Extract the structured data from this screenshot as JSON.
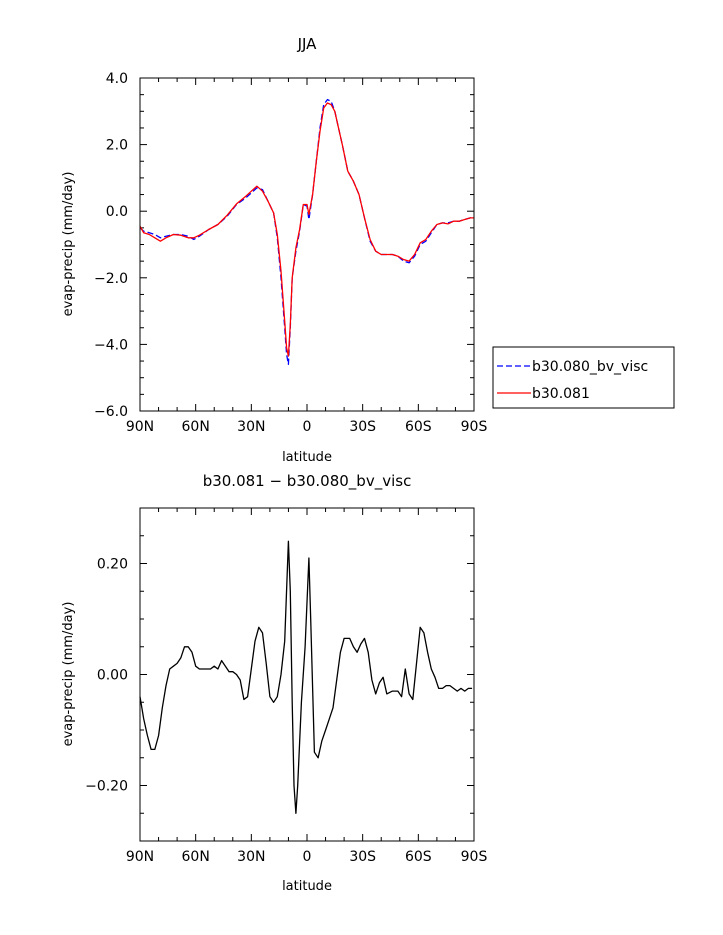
{
  "chart_data": [
    {
      "type": "line",
      "title": "JJA",
      "xlabel": "latitude",
      "ylabel": "evap-precip (mm/day)",
      "xlim": [
        -90,
        90
      ],
      "ylim": [
        -6,
        4
      ],
      "x_tick_values": [
        -90,
        -60,
        -30,
        0,
        30,
        60,
        90
      ],
      "x_tick_labels": [
        "90N",
        "60N",
        "30N",
        "0",
        "30S",
        "60S",
        "90S"
      ],
      "y_tick_values": [
        -6,
        -4,
        -2,
        0,
        2,
        4
      ],
      "y_tick_labels": [
        "−6.0",
        "−4.0",
        "−2.0",
        "0.0",
        "2.0",
        "4.0"
      ],
      "legend_position": "right",
      "series": [
        {
          "name": "b30.080_bv_visc",
          "color": "#0000ff",
          "style": "dashed",
          "points": [
            [
              -90,
              -0.5
            ],
            [
              -88,
              -0.6
            ],
            [
              -85,
              -0.65
            ],
            [
              -82,
              -0.7
            ],
            [
              -79,
              -0.8
            ],
            [
              -76,
              -0.75
            ],
            [
              -72,
              -0.7
            ],
            [
              -68,
              -0.7
            ],
            [
              -64,
              -0.75
            ],
            [
              -61,
              -0.85
            ],
            [
              -58,
              -0.75
            ],
            [
              -53,
              -0.55
            ],
            [
              -48,
              -0.4
            ],
            [
              -43,
              -0.15
            ],
            [
              -38,
              0.2
            ],
            [
              -33,
              0.4
            ],
            [
              -30,
              0.55
            ],
            [
              -27,
              0.7
            ],
            [
              -24,
              0.65
            ],
            [
              -21,
              0.3
            ],
            [
              -18,
              -0.05
            ],
            [
              -16,
              -0.8
            ],
            [
              -14,
              -2.0
            ],
            [
              -12,
              -3.5
            ],
            [
              -11,
              -4.3
            ],
            [
              -10,
              -4.6
            ],
            [
              -9,
              -3.5
            ],
            [
              -8,
              -2.0
            ],
            [
              -6,
              -1.2
            ],
            [
              -4,
              -0.6
            ],
            [
              -2,
              0.2
            ],
            [
              0,
              0.15
            ],
            [
              1,
              -0.25
            ],
            [
              3,
              0.5
            ],
            [
              5,
              1.5
            ],
            [
              7,
              2.5
            ],
            [
              9,
              3.2
            ],
            [
              11,
              3.35
            ],
            [
              13,
              3.3
            ],
            [
              15,
              3.0
            ],
            [
              17,
              2.5
            ],
            [
              19,
              2.0
            ],
            [
              22,
              1.2
            ],
            [
              25,
              0.9
            ],
            [
              28,
              0.5
            ],
            [
              31,
              -0.2
            ],
            [
              34,
              -0.9
            ],
            [
              37,
              -1.2
            ],
            [
              40,
              -1.3
            ],
            [
              43,
              -1.3
            ],
            [
              46,
              -1.3
            ],
            [
              49,
              -1.35
            ],
            [
              52,
              -1.5
            ],
            [
              55,
              -1.55
            ],
            [
              58,
              -1.35
            ],
            [
              61,
              -1.0
            ],
            [
              64,
              -0.9
            ],
            [
              67,
              -0.65
            ],
            [
              70,
              -0.4
            ],
            [
              73,
              -0.35
            ],
            [
              76,
              -0.35
            ],
            [
              79,
              -0.3
            ],
            [
              82,
              -0.3
            ],
            [
              85,
              -0.25
            ],
            [
              88,
              -0.2
            ],
            [
              90,
              -0.2
            ]
          ]
        },
        {
          "name": "b30.081",
          "color": "#ff0000",
          "style": "solid",
          "points": [
            [
              -90,
              -0.45
            ],
            [
              -88,
              -0.65
            ],
            [
              -85,
              -0.7
            ],
            [
              -82,
              -0.8
            ],
            [
              -79,
              -0.9
            ],
            [
              -76,
              -0.8
            ],
            [
              -72,
              -0.7
            ],
            [
              -68,
              -0.72
            ],
            [
              -64,
              -0.8
            ],
            [
              -61,
              -0.8
            ],
            [
              -58,
              -0.72
            ],
            [
              -53,
              -0.55
            ],
            [
              -48,
              -0.4
            ],
            [
              -43,
              -0.12
            ],
            [
              -38,
              0.22
            ],
            [
              -33,
              0.45
            ],
            [
              -30,
              0.6
            ],
            [
              -27,
              0.75
            ],
            [
              -24,
              0.6
            ],
            [
              -21,
              0.3
            ],
            [
              -18,
              -0.05
            ],
            [
              -16,
              -0.7
            ],
            [
              -14,
              -1.8
            ],
            [
              -12,
              -3.3
            ],
            [
              -11,
              -4.1
            ],
            [
              -10,
              -4.35
            ],
            [
              -9,
              -3.4
            ],
            [
              -8,
              -2.0
            ],
            [
              -6,
              -1.1
            ],
            [
              -4,
              -0.55
            ],
            [
              -2,
              0.2
            ],
            [
              0,
              0.2
            ],
            [
              1,
              -0.1
            ],
            [
              3,
              0.5
            ],
            [
              5,
              1.5
            ],
            [
              7,
              2.4
            ],
            [
              9,
              3.1
            ],
            [
              11,
              3.25
            ],
            [
              13,
              3.2
            ],
            [
              15,
              3.0
            ],
            [
              17,
              2.5
            ],
            [
              19,
              2.0
            ],
            [
              22,
              1.2
            ],
            [
              25,
              0.9
            ],
            [
              28,
              0.5
            ],
            [
              31,
              -0.2
            ],
            [
              34,
              -0.85
            ],
            [
              37,
              -1.2
            ],
            [
              40,
              -1.3
            ],
            [
              43,
              -1.3
            ],
            [
              46,
              -1.3
            ],
            [
              49,
              -1.35
            ],
            [
              52,
              -1.45
            ],
            [
              55,
              -1.5
            ],
            [
              58,
              -1.3
            ],
            [
              61,
              -0.95
            ],
            [
              64,
              -0.85
            ],
            [
              67,
              -0.6
            ],
            [
              70,
              -0.4
            ],
            [
              73,
              -0.35
            ],
            [
              76,
              -0.38
            ],
            [
              79,
              -0.3
            ],
            [
              82,
              -0.3
            ],
            [
              85,
              -0.25
            ],
            [
              88,
              -0.2
            ],
            [
              90,
              -0.2
            ]
          ]
        }
      ]
    },
    {
      "type": "line",
      "title": "b30.081 − b30.080_bv_visc",
      "xlabel": "latitude",
      "ylabel": "evap-precip (mm/day)",
      "xlim": [
        -90,
        90
      ],
      "ylim": [
        -0.3,
        0.3
      ],
      "x_tick_values": [
        -90,
        -60,
        -30,
        0,
        30,
        60,
        90
      ],
      "x_tick_labels": [
        "90N",
        "60N",
        "30N",
        "0",
        "30S",
        "60S",
        "90S"
      ],
      "y_tick_values": [
        -0.2,
        0,
        0.2
      ],
      "y_tick_labels": [
        "−0.20",
        "0.00",
        "0.20"
      ],
      "series": [
        {
          "color": "#000000",
          "style": "solid",
          "points": [
            [
              -90,
              -0.04
            ],
            [
              -88,
              -0.08
            ],
            [
              -86,
              -0.11
            ],
            [
              -84,
              -0.135
            ],
            [
              -82,
              -0.135
            ],
            [
              -80,
              -0.11
            ],
            [
              -78,
              -0.06
            ],
            [
              -76,
              -0.02
            ],
            [
              -74,
              0.01
            ],
            [
              -72,
              0.015
            ],
            [
              -70,
              0.02
            ],
            [
              -68,
              0.03
            ],
            [
              -66,
              0.05
            ],
            [
              -64,
              0.05
            ],
            [
              -62,
              0.04
            ],
            [
              -60,
              0.015
            ],
            [
              -58,
              0.01
            ],
            [
              -56,
              0.01
            ],
            [
              -54,
              0.01
            ],
            [
              -52,
              0.01
            ],
            [
              -50,
              0.015
            ],
            [
              -48,
              0.01
            ],
            [
              -46,
              0.025
            ],
            [
              -44,
              0.015
            ],
            [
              -42,
              0.005
            ],
            [
              -40,
              0.005
            ],
            [
              -38,
              0.0
            ],
            [
              -36,
              -0.01
            ],
            [
              -34,
              -0.045
            ],
            [
              -32,
              -0.04
            ],
            [
              -30,
              0.01
            ],
            [
              -28,
              0.06
            ],
            [
              -26,
              0.085
            ],
            [
              -24,
              0.075
            ],
            [
              -22,
              0.02
            ],
            [
              -20,
              -0.04
            ],
            [
              -18,
              -0.05
            ],
            [
              -16,
              -0.04
            ],
            [
              -14,
              0.0
            ],
            [
              -12,
              0.06
            ],
            [
              -10,
              0.24
            ],
            [
              -9,
              0.15
            ],
            [
              -8,
              -0.05
            ],
            [
              -7,
              -0.2
            ],
            [
              -6,
              -0.25
            ],
            [
              -5,
              -0.2
            ],
            [
              -3,
              -0.05
            ],
            [
              -1,
              0.05
            ],
            [
              1,
              0.21
            ],
            [
              2,
              0.1
            ],
            [
              4,
              -0.14
            ],
            [
              6,
              -0.15
            ],
            [
              8,
              -0.12
            ],
            [
              10,
              -0.1
            ],
            [
              12,
              -0.08
            ],
            [
              14,
              -0.06
            ],
            [
              16,
              -0.01
            ],
            [
              18,
              0.04
            ],
            [
              20,
              0.065
            ],
            [
              23,
              0.065
            ],
            [
              25,
              0.05
            ],
            [
              27,
              0.04
            ],
            [
              29,
              0.055
            ],
            [
              31,
              0.065
            ],
            [
              33,
              0.04
            ],
            [
              35,
              -0.01
            ],
            [
              37,
              -0.035
            ],
            [
              39,
              -0.015
            ],
            [
              41,
              -0.005
            ],
            [
              43,
              -0.035
            ],
            [
              46,
              -0.03
            ],
            [
              49,
              -0.03
            ],
            [
              51,
              -0.04
            ],
            [
              53,
              0.01
            ],
            [
              55,
              -0.035
            ],
            [
              57,
              -0.045
            ],
            [
              59,
              0.02
            ],
            [
              61,
              0.085
            ],
            [
              63,
              0.075
            ],
            [
              65,
              0.04
            ],
            [
              67,
              0.01
            ],
            [
              69,
              -0.005
            ],
            [
              71,
              -0.025
            ],
            [
              73,
              -0.025
            ],
            [
              75,
              -0.02
            ],
            [
              77,
              -0.02
            ],
            [
              79,
              -0.025
            ],
            [
              81,
              -0.03
            ],
            [
              83,
              -0.025
            ],
            [
              85,
              -0.03
            ],
            [
              87,
              -0.025
            ],
            [
              89,
              -0.025
            ]
          ]
        }
      ]
    }
  ]
}
